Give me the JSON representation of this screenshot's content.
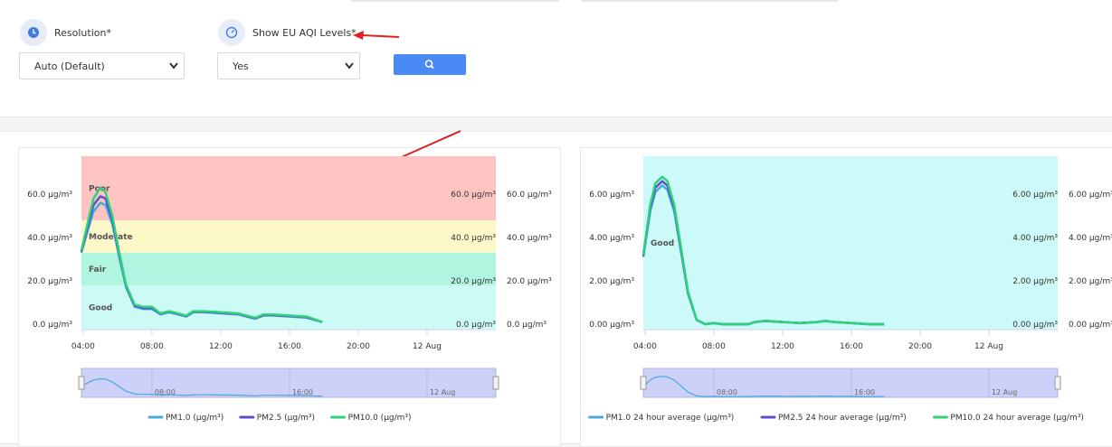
{
  "form": {
    "resolution": {
      "label": "Resolution*",
      "value": "Auto (Default)"
    },
    "aqi": {
      "label": "Show EU AQI Levels*",
      "value": "Yes"
    }
  },
  "chart_data": [
    {
      "type": "line",
      "x": [
        3.9,
        4.3,
        4.6,
        5.0,
        5.3,
        5.7,
        6.1,
        6.5,
        7.0,
        7.5,
        8.0,
        8.5,
        9.0,
        10.0,
        10.4,
        11.0,
        12.0,
        13.0,
        14.0,
        14.5,
        15.0,
        16.0,
        17.0,
        17.9
      ],
      "xlim": [
        3.9,
        28
      ],
      "xticks": [
        {
          "value": 4,
          "label": "04:00"
        },
        {
          "value": 8,
          "label": "08:00"
        },
        {
          "value": 12,
          "label": "12:00"
        },
        {
          "value": 16,
          "label": "16:00"
        },
        {
          "value": 20,
          "label": "20:00"
        },
        {
          "value": 24,
          "label": "12 Aug"
        }
      ],
      "ylim": [
        -2.5,
        77.5
      ],
      "yticks": [
        {
          "value": 0,
          "label": "0.0 µg/m³"
        },
        {
          "value": 20,
          "label": "20.0 µg/m³"
        },
        {
          "value": 40,
          "label": "40.0 µg/m³"
        },
        {
          "value": 60,
          "label": "60.0 µg/m³"
        }
      ],
      "bands": [
        {
          "label": "Good",
          "from": -2.5,
          "to": 18,
          "color": "#ccfaf4"
        },
        {
          "label": "Fair",
          "from": 18,
          "to": 33,
          "color": "#b0f5e0"
        },
        {
          "label": "Moderate",
          "from": 33,
          "to": 48,
          "color": "#fcf8c8"
        },
        {
          "label": "Poor",
          "from": 48,
          "to": 77.5,
          "color": "#fec4c2"
        }
      ],
      "series": [
        {
          "name": "PM1.0 (µg/m³)",
          "color": "#4aa8e0",
          "values": [
            33,
            44,
            52,
            56,
            55,
            46,
            31,
            17,
            8,
            7,
            7,
            4.5,
            5.5,
            3.5,
            5.5,
            5.5,
            5,
            4.5,
            2.5,
            4,
            4,
            3.5,
            3,
            1
          ]
        },
        {
          "name": "PM2.5 (µg/m³)",
          "color": "#5b4fd0",
          "values": [
            33.5,
            46,
            55,
            59,
            58,
            48,
            32,
            17.5,
            8.5,
            7.5,
            7.5,
            4.8,
            5.8,
            3.8,
            5.8,
            5.8,
            5.2,
            4.8,
            2.8,
            4.2,
            4.2,
            3.8,
            3.2,
            1
          ]
        },
        {
          "name": "PM10.0 (µg/m³)",
          "color": "#2ed27a",
          "values": [
            34,
            48,
            58,
            63,
            61,
            50,
            33,
            18,
            9,
            8,
            8,
            5,
            6,
            4,
            6,
            6,
            5.5,
            5,
            3,
            4.5,
            4.5,
            4,
            3.5,
            1
          ]
        }
      ]
    },
    {
      "type": "line",
      "x": [
        3.9,
        4.3,
        4.6,
        5.0,
        5.3,
        5.7,
        6.1,
        6.5,
        7.0,
        7.5,
        8.0,
        8.5,
        9.0,
        10.0,
        10.4,
        11.0,
        12.0,
        13.0,
        14.0,
        14.5,
        15.0,
        16.0,
        17.0,
        17.9
      ],
      "xlim": [
        3.9,
        28
      ],
      "xticks": [
        {
          "value": 4,
          "label": "04:00"
        },
        {
          "value": 8,
          "label": "08:00"
        },
        {
          "value": 12,
          "label": "12:00"
        },
        {
          "value": 16,
          "label": "16:00"
        },
        {
          "value": 20,
          "label": "20:00"
        },
        {
          "value": 24,
          "label": "12 Aug"
        }
      ],
      "ylim": [
        -0.25,
        7.75
      ],
      "yticks": [
        {
          "value": 0,
          "label": "0.00 µg/m³"
        },
        {
          "value": 2,
          "label": "2.00 µg/m³"
        },
        {
          "value": 4,
          "label": "4.00 µg/m³"
        },
        {
          "value": 6,
          "label": "6.00 µg/m³"
        }
      ],
      "bands": [
        {
          "label": "Good",
          "from": -0.25,
          "to": 7.75,
          "color": "#ccfaf8"
        }
      ],
      "series": [
        {
          "name": "PM1.0 24 hour average (µg/m³)",
          "color": "#4aa8e0",
          "values": [
            3.1,
            5.2,
            6.1,
            6.4,
            6.2,
            5.2,
            3.3,
            1.4,
            0.2,
            0,
            0.05,
            0,
            0,
            0,
            0.1,
            0.15,
            0.1,
            0.05,
            0.1,
            0.15,
            0.1,
            0.05,
            0,
            0
          ]
        },
        {
          "name": "PM2.5 24 hour average (µg/m³)",
          "color": "#5b4fd0",
          "values": [
            3.15,
            5.35,
            6.3,
            6.6,
            6.4,
            5.35,
            3.4,
            1.45,
            0.2,
            0,
            0.05,
            0,
            0,
            0,
            0.1,
            0.15,
            0.1,
            0.05,
            0.1,
            0.15,
            0.1,
            0.05,
            0,
            0
          ]
        },
        {
          "name": "PM10.0 24 hour average (µg/m³)",
          "color": "#2ed27a",
          "values": [
            3.2,
            5.5,
            6.5,
            6.8,
            6.6,
            5.5,
            3.5,
            1.5,
            0.2,
            0,
            0.05,
            0,
            0,
            0,
            0.1,
            0.15,
            0.1,
            0.05,
            0.1,
            0.15,
            0.1,
            0.05,
            0,
            0
          ]
        }
      ]
    }
  ]
}
